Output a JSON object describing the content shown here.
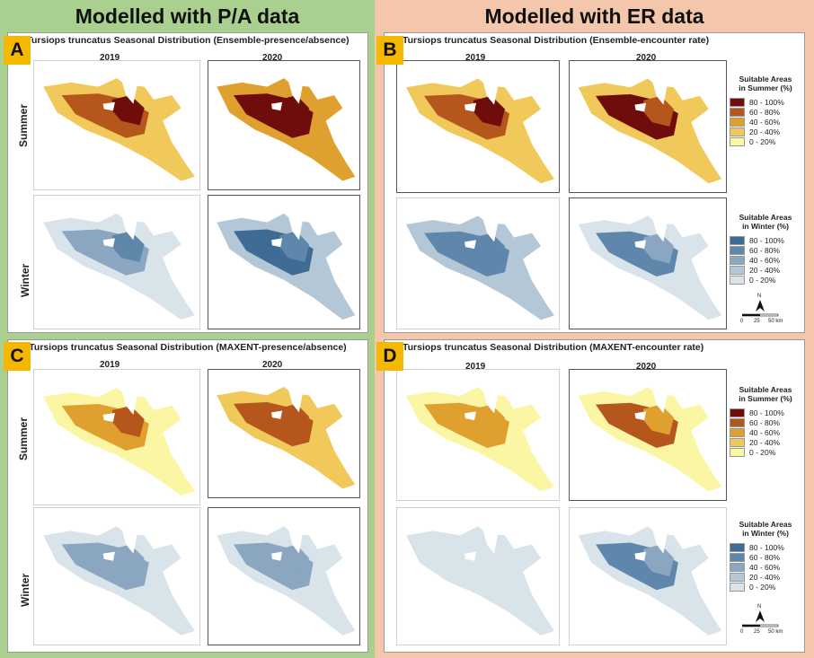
{
  "left_half_title": "Modelled with P/A data",
  "right_half_title": "Modelled with ER data",
  "panels": {
    "A": {
      "letter": "A",
      "title": "Tursiops truncatus Seasonal Distribution (Ensemble-presence/absence)"
    },
    "B": {
      "letter": "B",
      "title": "Tursiops truncatus Seasonal Distribution (Ensemble-encounter rate)"
    },
    "C": {
      "letter": "C",
      "title": "Tursiops truncatus Seasonal Distribution (MAXENT-presence/absence)"
    },
    "D": {
      "letter": "D",
      "title": "Tursiops truncatus Seasonal Distribution (MAXENT-encounter rate)"
    }
  },
  "years": [
    "2019",
    "2020"
  ],
  "seasons": [
    "Summer",
    "Winter"
  ],
  "legend_summer": {
    "title_line1": "Suitable Areas",
    "title_line2": "in Summer (%)",
    "items": [
      "80 - 100%",
      "60 - 80%",
      "40 - 60%",
      "20 - 40%",
      "0 - 20%"
    ],
    "colors": [
      "#6e0d0b",
      "#b5571c",
      "#e0a02f",
      "#f1c85a",
      "#fbf6a4"
    ]
  },
  "legend_winter": {
    "title_line1": "Suitable Areas",
    "title_line2": "in Winter (%)",
    "items": [
      "80 - 100%",
      "60 - 80%",
      "40 - 60%",
      "20 - 40%",
      "0 - 20%"
    ],
    "colors": [
      "#3e6c95",
      "#5f87ab",
      "#8aa6c0",
      "#b3c7d6",
      "#d9e4ea"
    ]
  },
  "scale": {
    "north": "N",
    "ticks": [
      "0",
      "25",
      "50 km"
    ]
  }
}
